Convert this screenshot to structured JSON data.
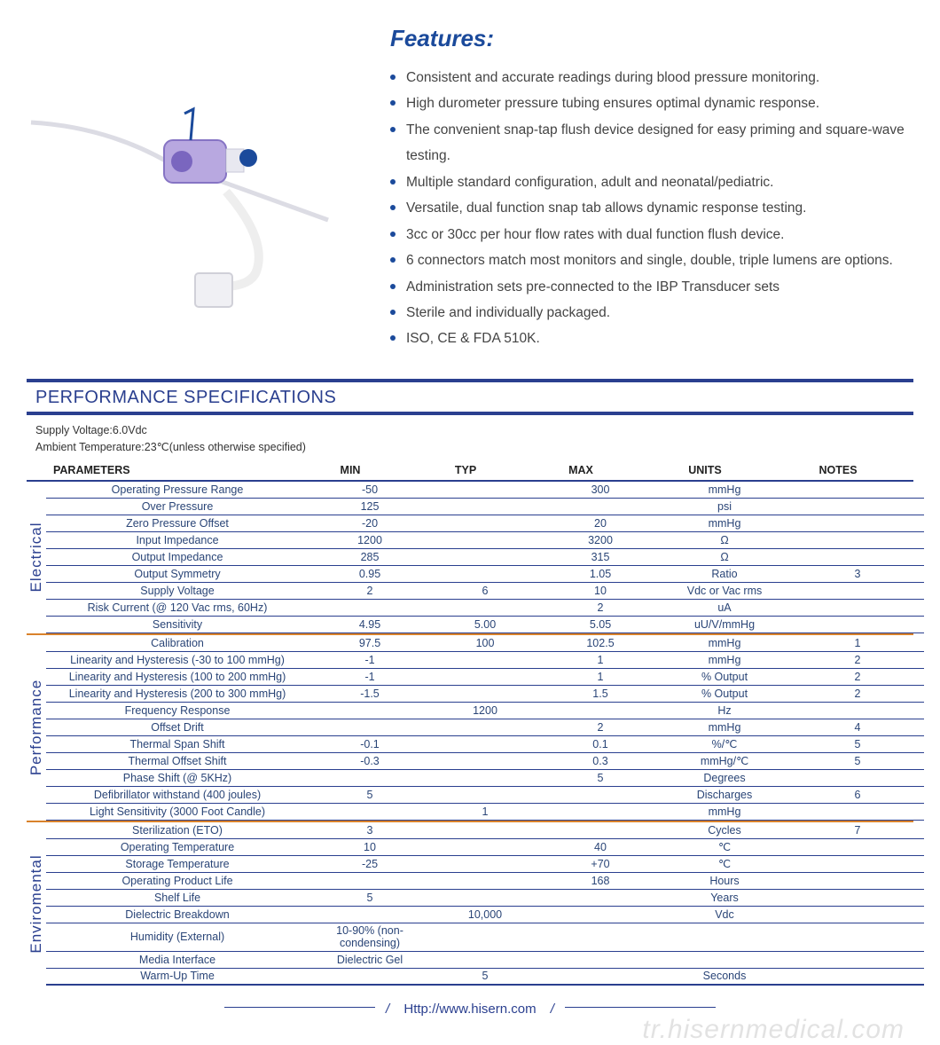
{
  "features": {
    "heading": "Features:",
    "items": [
      "Consistent and accurate readings during blood pressure monitoring.",
      "High durometer pressure tubing ensures optimal dynamic response.",
      "The convenient snap-tap flush device designed for easy priming and square-wave testing.",
      "Multiple standard configuration, adult and neonatal/pediatric.",
      "Versatile, dual function snap tab allows dynamic response testing.",
      "3cc or 30cc per hour flow rates with dual function flush device.",
      "6 connectors match most monitors and single, double, triple lumens are options.",
      "Administration sets pre-connected to the IBP Transducer sets",
      "Sterile and individually packaged.",
      "ISO, CE & FDA 510K."
    ]
  },
  "spec": {
    "title": "PERFORMANCE SPECIFICATIONS",
    "subtitle1": "Supply Voltage:6.0Vdc",
    "subtitle2": "Ambient Temperature:23℃(unless otherwise specified)",
    "headers": {
      "param": "PARAMETERS",
      "min": "MIN",
      "typ": "TYP",
      "max": "MAX",
      "units": "UNITS",
      "notes": "NOTES"
    },
    "sections": [
      {
        "label": "Electrical",
        "rows": [
          {
            "p": "Operating Pressure Range",
            "min": "-50",
            "typ": "",
            "max": "300",
            "u": "mmHg",
            "n": ""
          },
          {
            "p": "Over  Pressure",
            "min": "125",
            "typ": "",
            "max": "",
            "u": "psi",
            "n": ""
          },
          {
            "p": "Zero Pressure Offset",
            "min": "-20",
            "typ": "",
            "max": "20",
            "u": "mmHg",
            "n": ""
          },
          {
            "p": "Input Impedance",
            "min": "1200",
            "typ": "",
            "max": "3200",
            "u": "Ω",
            "n": ""
          },
          {
            "p": "Output Impedance",
            "min": "285",
            "typ": "",
            "max": "315",
            "u": "Ω",
            "n": ""
          },
          {
            "p": "Output Symmetry",
            "min": "0.95",
            "typ": "",
            "max": "1.05",
            "u": "Ratio",
            "n": "3"
          },
          {
            "p": "Supply Voltage",
            "min": "2",
            "typ": "6",
            "max": "10",
            "u": "Vdc or Vac rms",
            "n": ""
          },
          {
            "p": "Risk Current (@ 120 Vac rms, 60Hz)",
            "min": "",
            "typ": "",
            "max": "2",
            "u": "uA",
            "n": ""
          },
          {
            "p": "Sensitivity",
            "min": "4.95",
            "typ": "5.00",
            "max": "5.05",
            "u": "uU/V/mmHg",
            "n": ""
          }
        ]
      },
      {
        "label": "Performance",
        "rows": [
          {
            "p": "Calibration",
            "min": "97.5",
            "typ": "100",
            "max": "102.5",
            "u": "mmHg",
            "n": "1"
          },
          {
            "p": "Linearity and Hysteresis (-30 to 100 mmHg)",
            "min": "-1",
            "typ": "",
            "max": "1",
            "u": "mmHg",
            "n": "2"
          },
          {
            "p": "Linearity and Hysteresis (100 to 200 mmHg)",
            "min": "-1",
            "typ": "",
            "max": "1",
            "u": "% Output",
            "n": "2"
          },
          {
            "p": "Linearity and Hysteresis (200 to 300 mmHg)",
            "min": "-1.5",
            "typ": "",
            "max": "1.5",
            "u": "% Output",
            "n": "2"
          },
          {
            "p": "Frequency Response",
            "min": "",
            "typ": "1200",
            "max": "",
            "u": "Hz",
            "n": ""
          },
          {
            "p": "Offset Drift",
            "min": "",
            "typ": "",
            "max": "2",
            "u": "mmHg",
            "n": "4"
          },
          {
            "p": "Thermal Span Shift",
            "min": "-0.1",
            "typ": "",
            "max": "0.1",
            "u": "%/℃",
            "n": "5"
          },
          {
            "p": "Thermal Offset Shift",
            "min": "-0.3",
            "typ": "",
            "max": "0.3",
            "u": "mmHg/℃",
            "n": "5"
          },
          {
            "p": "Phase Shift (@ 5KHz)",
            "min": "",
            "typ": "",
            "max": "5",
            "u": "Degrees",
            "n": ""
          },
          {
            "p": "Defibrillator withstand (400 joules)",
            "min": "5",
            "typ": "",
            "max": "",
            "u": "Discharges",
            "n": "6"
          },
          {
            "p": "Light Sensitivity (3000 Foot Candle)",
            "min": "",
            "typ": "1",
            "max": "",
            "u": "mmHg",
            "n": ""
          }
        ]
      },
      {
        "label": "Enviromental",
        "rows": [
          {
            "p": "Sterilization (ETO)",
            "min": "3",
            "typ": "",
            "max": "",
            "u": "Cycles",
            "n": "7"
          },
          {
            "p": "Operating Temperature",
            "min": "10",
            "typ": "",
            "max": "40",
            "u": "℃",
            "n": ""
          },
          {
            "p": "Storage Temperature",
            "min": "-25",
            "typ": "",
            "max": "+70",
            "u": "℃",
            "n": ""
          },
          {
            "p": "Operating Product Life",
            "min": "",
            "typ": "",
            "max": "168",
            "u": "Hours",
            "n": ""
          },
          {
            "p": "Shelf Life",
            "min": "5",
            "typ": "",
            "max": "",
            "u": "Years",
            "n": ""
          },
          {
            "p": "Dielectric Breakdown",
            "min": "",
            "typ": "10,000",
            "max": "",
            "u": "Vdc",
            "n": ""
          },
          {
            "p": "Humidity (External)",
            "min": "10-90% (non-condensing)",
            "typ": "",
            "max": "",
            "u": "",
            "n": ""
          },
          {
            "p": "Media Interface",
            "min": "Dielectric Gel",
            "typ": "",
            "max": "",
            "u": "",
            "n": ""
          },
          {
            "p": "Warm-Up Time",
            "min": "",
            "typ": "5",
            "max": "",
            "u": "Seconds",
            "n": ""
          }
        ]
      }
    ]
  },
  "footer": {
    "url": "Http://www.hisern.com"
  },
  "watermark": "tr.hisernmedical.com",
  "colors": {
    "brand": "#2a3f8f",
    "accent": "#d9822b"
  }
}
